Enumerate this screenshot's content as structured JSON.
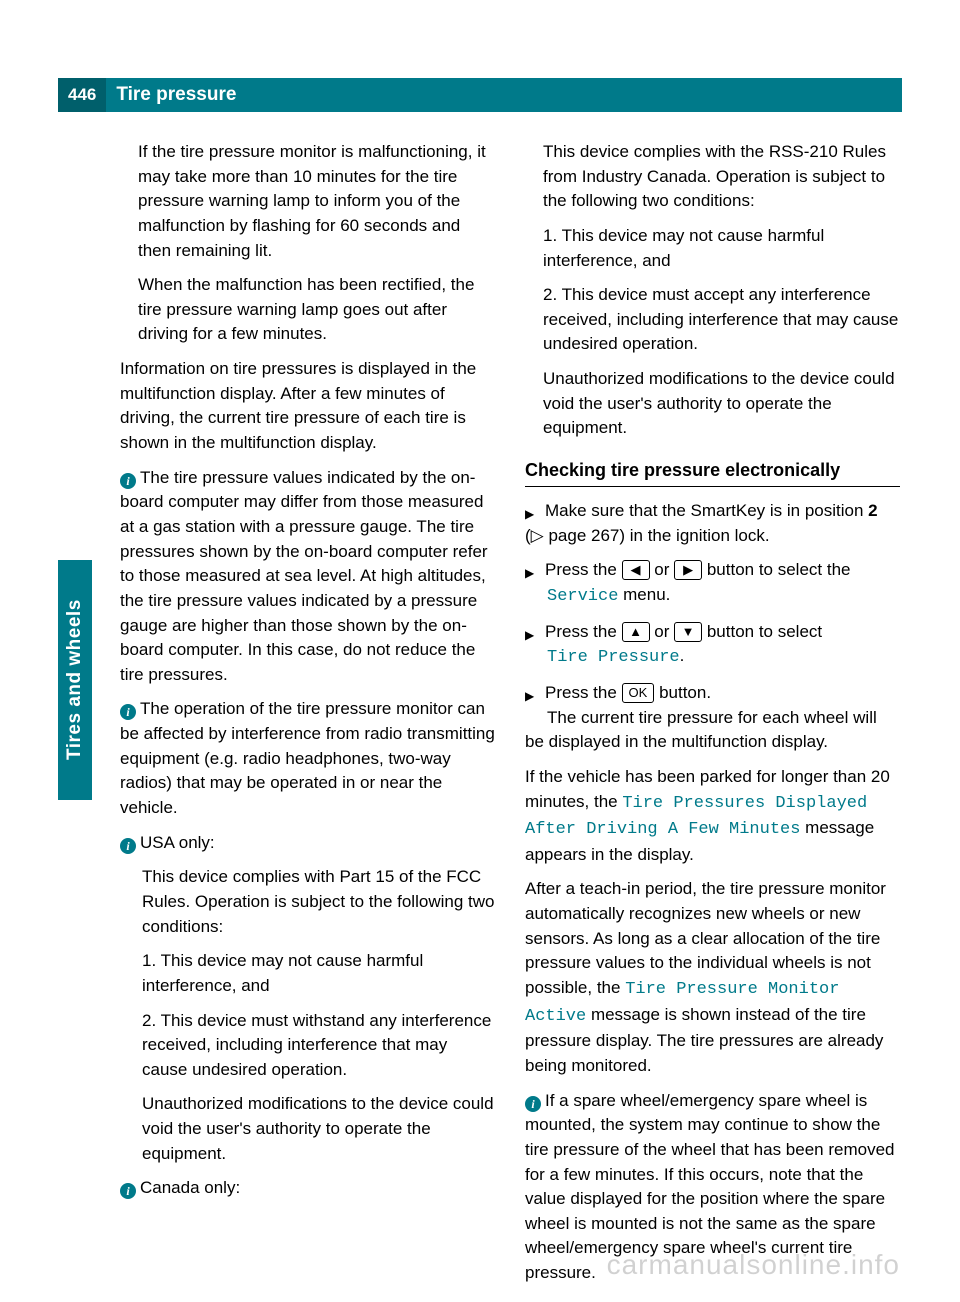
{
  "header": {
    "page_number": "446",
    "title": "Tire pressure"
  },
  "side_tab": "Tires and wheels",
  "col1": {
    "box1_p1": "If the tire pressure monitor is malfunctioning, it may take more than 10 minutes for the tire pressure warning lamp to inform you of the malfunction by flashing for 60 seconds and then remaining lit.",
    "box1_p2": "When the malfunction has been rectified, the tire pressure warning lamp goes out after driving for a few minutes.",
    "p3": "Information on tire pressures is displayed in the multifunction display. After a few minutes of driving, the current tire pressure of each tire is shown in the multifunction display.",
    "info1": "The tire pressure values indicated by the on-board computer may differ from those measured at a gas station with a pressure gauge. The tire pressures shown by the on-board computer refer to those measured at sea level. At high altitudes, the tire pressure values indicated by a pressure gauge are higher than those shown by the on-board computer. In this case, do not reduce the tire pressures.",
    "info2": "The operation of the tire pressure monitor can be affected by interference from radio transmitting equipment (e.g. radio headphones, two-way radios) that may be operated in or near the vehicle.",
    "info3_lead": "USA only:",
    "info3_p1": "This device complies with Part 15 of the FCC Rules. Operation is subject to the following two conditions:",
    "info3_p2": "1. This device may not cause harmful interference, and",
    "info3_p3": "2. This device must withstand any interference received, including interference that may cause undesired operation.",
    "info3_p4": "Unauthorized modifications to the device could void the user's authority to operate the equipment.",
    "info4_lead": "Canada only:"
  },
  "col2": {
    "box2_p1": "This device complies with the RSS-210 Rules from Industry Canada. Operation is subject to the following two conditions:",
    "box2_p2": "1. This device may not cause harmful interference, and",
    "box2_p3": "2. This device must accept any interference received, including interference that may cause undesired operation.",
    "box2_p4": "Unauthorized modifications to the device could void the user's authority to operate the equipment.",
    "section_title": "Checking tire pressure electronically",
    "step1_a": "Make sure that the SmartKey is in position ",
    "step1_b": "2",
    "step1_c": " (▷ page 267) in the ignition lock.",
    "step2_a": "Press the ",
    "step2_b": " or ",
    "step2_c": " button to select the ",
    "step2_menu": "Service",
    "step2_d": " menu.",
    "step3_a": "Press the ",
    "step3_b": " or ",
    "step3_c": " button to select ",
    "step3_menu": "Tire Pressure",
    "step3_d": ".",
    "step4_a": "Press the ",
    "step4_b": " button.",
    "step4_c": "The current tire pressure for each wheel will be displayed in the multifunction display.",
    "p5_a": "If the vehicle has been parked for longer than 20 minutes, the ",
    "p5_mono": "Tire Pressures Displayed After Driving A Few Minutes",
    "p5_b": " message appears in the display.",
    "p6_a": "After a teach-in period, the tire pressure monitor automatically recognizes new wheels or new sensors. As long as a clear allocation of the tire pressure values to the individual wheels is not possible, the ",
    "p6_mono": "Tire Pressure Monitor Active",
    "p6_b": " message is shown instead of the tire pressure display. The tire pressures are already being monitored.",
    "info5": "If a spare wheel/emergency spare wheel is mounted, the system may continue to show the tire pressure of the wheel that has been removed for a few minutes. If this occurs, note that the value displayed for the position where the spare wheel is mounted is not the same as the spare wheel/emergency spare wheel's current tire pressure.",
    "keys": {
      "left": "◀",
      "right": "▶",
      "up": "▲",
      "down": "▼",
      "ok": "OK"
    }
  },
  "watermark": "carmanualsonline.info"
}
